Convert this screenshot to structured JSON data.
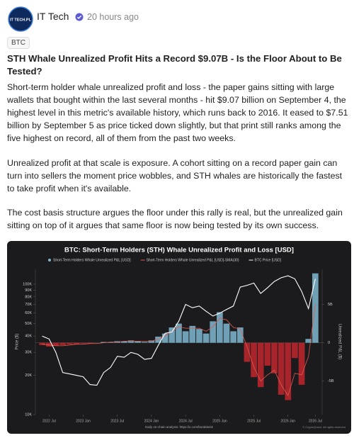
{
  "post": {
    "avatar_text": "IT TECH.PL",
    "author": "IT Tech",
    "time": "20 hours ago",
    "tag": "BTC",
    "title": "STH Whale Unrealized Profit Hits a Record $9.07B - Is the Floor About to Be Tested?",
    "paragraphs": [
      "Short-term holder whale unrealized profit and loss - the paper gains sitting with large wallets that bought within the last several months - hit $9.07 billion on September 4, the highest level in this metric's available history, which runs back to 2016. It eased to $7.51 billion by September 5 as price ticked down slightly, but that print still ranks among the five highest on record, all of them from the past two weeks.",
      "Unrealized profit at that scale is exposure. A cohort sitting on a record paper gain can turn into sellers the moment price wobbles, and STH whales are historically the fastest to take profit when it's available.",
      "The cost basis structure argues the floor under this rally is real, but the unrealized gain sitting on top of it argues that same floor is now being tested by its own success."
    ]
  },
  "chart_data": {
    "type": "bar",
    "title": "BTC: Short-Term Holders (STH) Whale Unrealized Profit and Loss [USD]",
    "y_label": "Price ($)",
    "y2_label": "Unrealized P&L ($)",
    "footer": "Daily on-chain analysis: https://x.com/burakkesk",
    "copyright": "© CryptoQuant. All rights reserved",
    "log_y": true,
    "x": [
      0,
      1,
      2,
      3,
      4,
      5,
      6,
      7,
      8,
      9,
      10,
      11,
      12,
      13,
      14,
      15,
      16,
      17,
      18,
      19,
      20,
      21,
      22,
      23,
      24,
      25,
      26,
      27,
      28,
      29,
      30,
      31,
      32,
      33,
      34,
      35,
      36,
      37,
      38,
      39,
      40
    ],
    "xlim": [
      -1,
      41
    ],
    "xticks": [
      {
        "value": 1,
        "label": "2022 Jul"
      },
      {
        "value": 6,
        "label": "2023 Jan"
      },
      {
        "value": 11,
        "label": "2023 Jul"
      },
      {
        "value": 16,
        "label": "2024 Jan"
      },
      {
        "value": 21,
        "label": "2024 Jul"
      },
      {
        "value": 26,
        "label": "2025 Jan"
      },
      {
        "value": 31,
        "label": "2025 Jul"
      },
      {
        "value": 36,
        "label": "2026 Jan"
      },
      {
        "value": 40,
        "label": "2026 Jul"
      }
    ],
    "ylim": [
      10000,
      130000
    ],
    "yticks": [
      {
        "value": 10000,
        "label": "10K"
      },
      {
        "value": 20000,
        "label": "20K"
      },
      {
        "value": 30000,
        "label": "30K"
      },
      {
        "value": 40000,
        "label": "40K"
      },
      {
        "value": 50000,
        "label": "50K"
      },
      {
        "value": 60000,
        "label": "60K"
      },
      {
        "value": 70000,
        "label": "70K"
      },
      {
        "value": 80000,
        "label": "80K"
      },
      {
        "value": 90000,
        "label": "90K"
      },
      {
        "value": 100000,
        "label": "100K"
      }
    ],
    "y2lim": [
      -9.4,
      9.6
    ],
    "y2ticks": [
      {
        "value": 5,
        "label": "5B"
      },
      0,
      {
        "value": -5,
        "label": "-5B"
      }
    ],
    "series": [
      {
        "name": "Short-Term Holders Whale Unrealized P&L [USD]",
        "type": "bar",
        "axis": "y2",
        "color": "#7fb7d0",
        "negative_color": "#c0262d",
        "values": [
          -0.3,
          -0.5,
          -0.4,
          -0.3,
          -0.2,
          -0.2,
          -0.1,
          -0.1,
          0,
          0.1,
          0.1,
          0.2,
          0.2,
          0.3,
          0.2,
          0.1,
          0.3,
          0.8,
          1.2,
          2.0,
          2.5,
          1.5,
          2.2,
          1.8,
          1.2,
          2.8,
          4.0,
          2.5,
          1.5,
          2.0,
          -2.5,
          -4.5,
          -5.8,
          -3.0,
          -4.0,
          -6.8,
          -7.5,
          -2.0,
          -5.5,
          0.5,
          9.07
        ]
      },
      {
        "name": "Short-Term Holders Whale Unrealized P&L [USD]-SMA(30)",
        "type": "line",
        "axis": "y2",
        "color": "#e05a4f",
        "values": [
          -0.2,
          -0.3,
          -0.4,
          -0.4,
          -0.3,
          -0.2,
          -0.2,
          -0.1,
          -0.1,
          0,
          0.1,
          0.1,
          0.2,
          0.2,
          0.2,
          0.2,
          0.2,
          0.5,
          0.9,
          1.5,
          2.1,
          1.9,
          1.9,
          1.9,
          1.5,
          2.1,
          3.2,
          3.0,
          2.0,
          1.8,
          -0.5,
          -3.2,
          -5.0,
          -4.2,
          -3.6,
          -5.5,
          -6.9,
          -4.0,
          -4.2,
          -1.8,
          5.0
        ]
      },
      {
        "name": "BTC Price [USD]",
        "type": "line",
        "axis": "y",
        "color": "#ffffff",
        "values": [
          40000,
          38000,
          30000,
          21000,
          20500,
          20000,
          19500,
          17000,
          16800,
          21000,
          23000,
          28000,
          27500,
          30000,
          29000,
          26500,
          27000,
          34000,
          42000,
          43000,
          52000,
          70000,
          66000,
          68000,
          62000,
          57000,
          60000,
          64000,
          68000,
          95000,
          98000,
          102000,
          85000,
          94000,
          105000,
          112000,
          116000,
          110000,
          88000,
          65000,
          110000
        ]
      }
    ]
  }
}
